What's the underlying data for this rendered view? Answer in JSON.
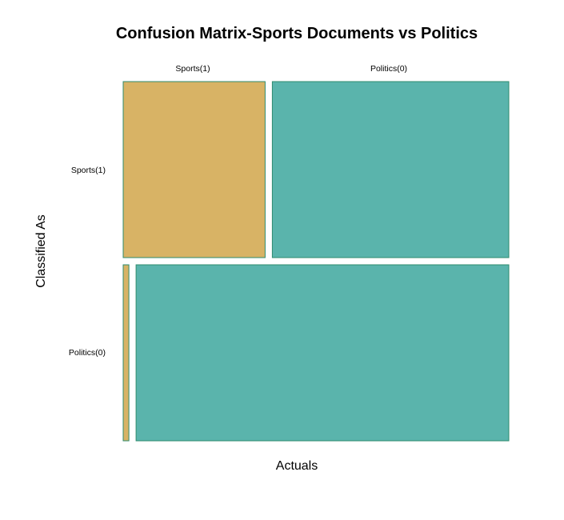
{
  "chart_data": {
    "type": "mosaic",
    "title": "Confusion Matrix-Sports Documents vs Politics",
    "xlabel": "Actuals",
    "ylabel": "Classified As",
    "row_categories": [
      "Sports(1)",
      "Politics(0)"
    ],
    "column_labels": [
      "Sports(1)",
      "Politics(0)"
    ],
    "colors": {
      "tile_a": "#D8B365",
      "tile_b": "#5AB4AC",
      "border": "#2E8B6E"
    },
    "rows": [
      {
        "label": "Sports(1)",
        "proportion": 0.5,
        "cells": [
          {
            "actual": "Sports(1)",
            "proportion": 0.375,
            "color": "#D8B365"
          },
          {
            "actual": "Politics(0)",
            "proportion": 0.625,
            "color": "#5AB4AC"
          }
        ]
      },
      {
        "label": "Politics(0)",
        "proportion": 0.5,
        "cells": [
          {
            "actual": "Sports(1)",
            "proportion": 0.015,
            "color": "#D8B365"
          },
          {
            "actual": "Politics(0)",
            "proportion": 0.985,
            "color": "#5AB4AC"
          }
        ]
      }
    ]
  }
}
